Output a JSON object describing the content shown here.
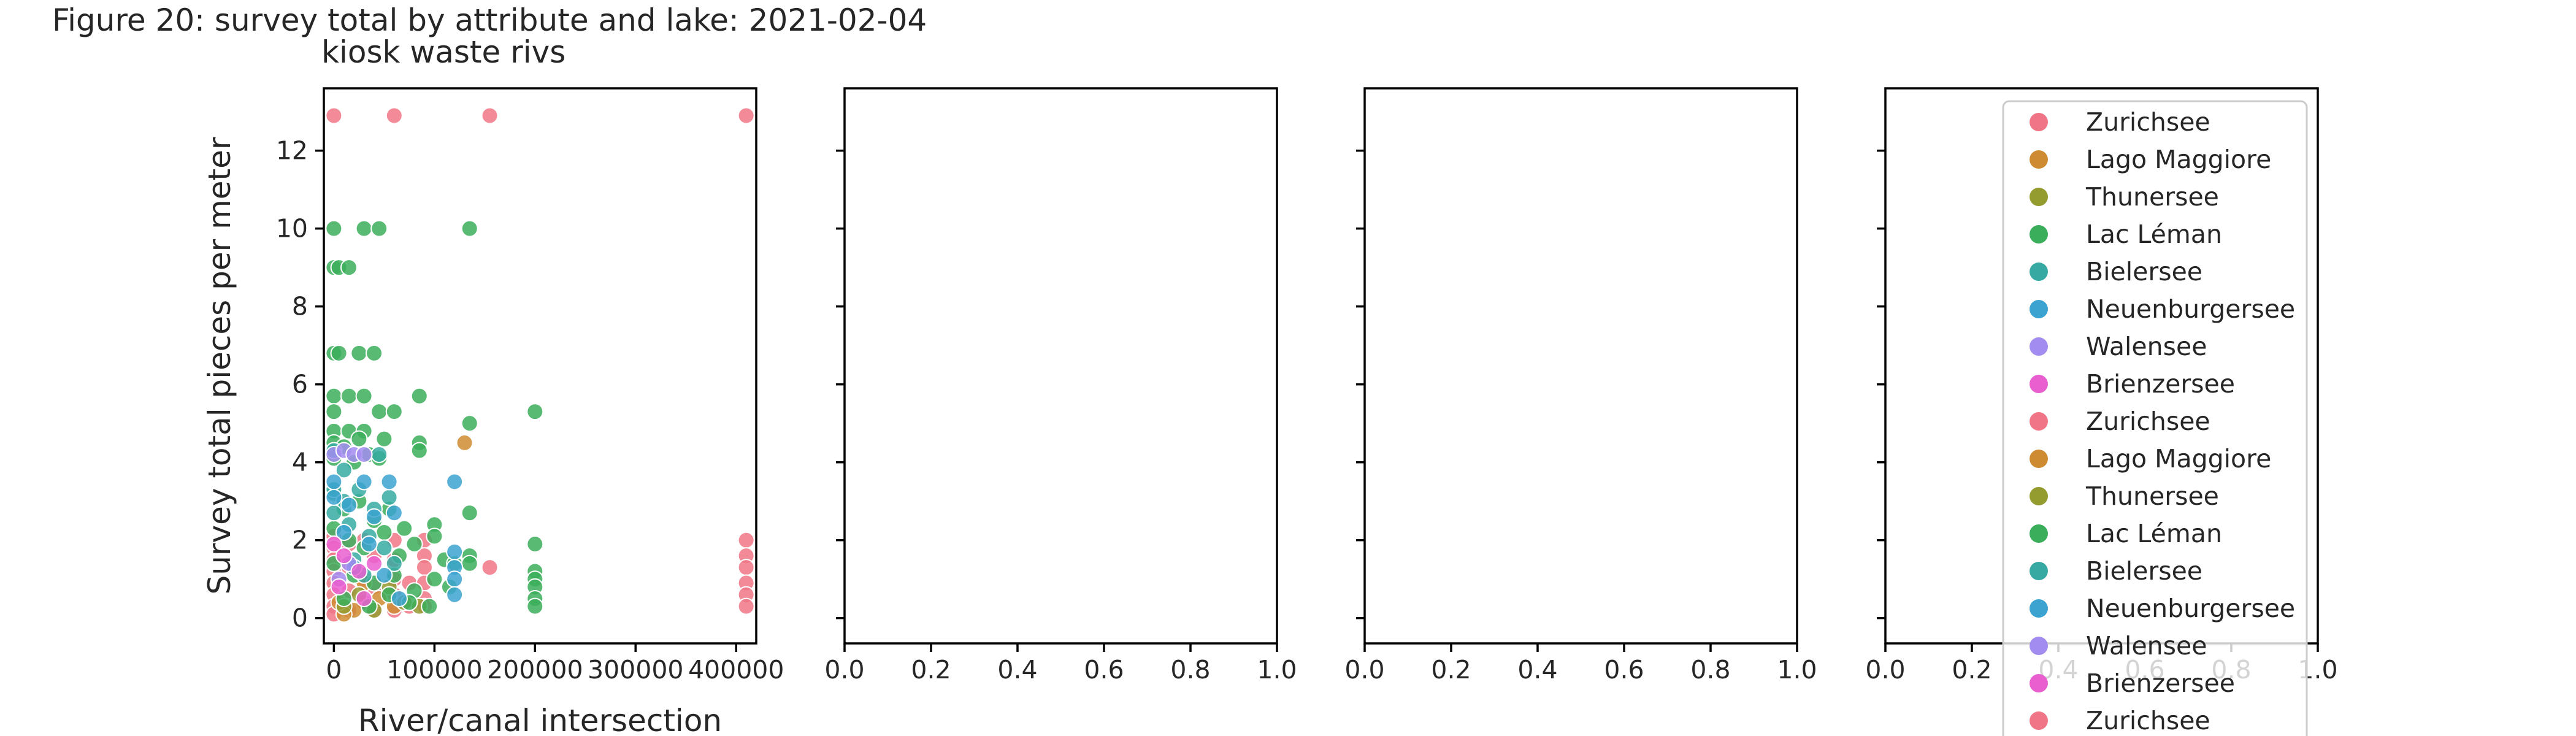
{
  "title": "Figure 20: survey total by attribute and lake: 2021-02-04",
  "subtitle": "kiosk waste rivs",
  "legend_labels": [
    "Zurichsee",
    "Lago Maggiore",
    "Thunersee",
    "Lac Léman",
    "Bielersee",
    "Neuenburgersee",
    "Walensee",
    "Brienzersee",
    "Zurichsee",
    "Lago Maggiore",
    "Thunersee",
    "Lac Léman",
    "Bielersee",
    "Neuenburgersee",
    "Walensee",
    "Brienzersee",
    "Zurichsee"
  ],
  "legend_colors": [
    "#f07586",
    "#cf8b31",
    "#949c30",
    "#3bae5b",
    "#36aaa2",
    "#3ca3d0",
    "#a38cf0",
    "#ea5fd0",
    "#f07586",
    "#cf8b31",
    "#949c30",
    "#3bae5b",
    "#36aaa2",
    "#3ca3d0",
    "#a38cf0",
    "#ea5fd0",
    "#f07586"
  ],
  "lake_colors": {
    "Zurichsee": "#f07586",
    "Lago Maggiore": "#cf8b31",
    "Thunersee": "#949c30",
    "Lac Léman": "#3bae5b",
    "Bielersee": "#36aaa2",
    "Neuenburgersee": "#3ca3d0",
    "Walensee": "#a38cf0",
    "Brienzersee": "#ea5fd0"
  },
  "chart_data": [
    {
      "type": "scatter",
      "xlabel": "River/canal intersection",
      "ylabel": "Survey total pieces per meter",
      "xlim": [
        -10000,
        420000
      ],
      "ylim": [
        -0.65,
        13.6
      ],
      "xticks": [
        0,
        100000,
        200000,
        300000,
        400000
      ],
      "xtick_labels": [
        "0",
        "100000",
        "200000",
        "300000",
        "400000"
      ],
      "yticks": [
        0,
        2,
        4,
        6,
        8,
        10,
        12
      ],
      "ytick_labels": [
        "0",
        "2",
        "4",
        "6",
        "8",
        "10",
        "12"
      ],
      "series": [
        {
          "name": "Zurichsee",
          "points": [
            [
              0,
              12.9
            ],
            [
              60000,
              12.9
            ],
            [
              155000,
              12.9
            ],
            [
              410000,
              12.9
            ],
            [
              0,
              2.1
            ],
            [
              0,
              1.8
            ],
            [
              0,
              1.5
            ],
            [
              0,
              1.2
            ],
            [
              0,
              0.9
            ],
            [
              0,
              0.6
            ],
            [
              0,
              0.3
            ],
            [
              0,
              0.1
            ],
            [
              15000,
              1.9
            ],
            [
              15000,
              1.3
            ],
            [
              15000,
              0.7
            ],
            [
              15000,
              0.2
            ],
            [
              30000,
              2.0
            ],
            [
              30000,
              1.0
            ],
            [
              30000,
              0.4
            ],
            [
              40000,
              1.6
            ],
            [
              40000,
              0.8
            ],
            [
              40000,
              0.2
            ],
            [
              60000,
              2.0
            ],
            [
              60000,
              1.5
            ],
            [
              60000,
              1.0
            ],
            [
              60000,
              0.6
            ],
            [
              60000,
              0.2
            ],
            [
              75000,
              0.9
            ],
            [
              75000,
              0.3
            ],
            [
              90000,
              2.0
            ],
            [
              90000,
              1.6
            ],
            [
              90000,
              1.3
            ],
            [
              90000,
              0.9
            ],
            [
              90000,
              0.5
            ],
            [
              90000,
              0.3
            ],
            [
              155000,
              1.3
            ],
            [
              410000,
              2.0
            ],
            [
              410000,
              1.6
            ],
            [
              410000,
              1.3
            ],
            [
              410000,
              0.9
            ],
            [
              410000,
              0.6
            ],
            [
              410000,
              0.3
            ]
          ]
        },
        {
          "name": "Lago Maggiore",
          "points": [
            [
              130000,
              4.5
            ],
            [
              30000,
              0.9
            ],
            [
              20000,
              0.2
            ],
            [
              10000,
              0.1
            ],
            [
              45000,
              0.5
            ],
            [
              60000,
              0.3
            ],
            [
              5000,
              0.4
            ]
          ]
        },
        {
          "name": "Thunersee",
          "points": [
            [
              10000,
              0.3
            ],
            [
              25000,
              0.6
            ],
            [
              40000,
              0.2
            ],
            [
              55000,
              0.8
            ],
            [
              70000,
              0.4
            ],
            [
              85000,
              0.3
            ]
          ]
        },
        {
          "name": "Lac Léman",
          "points": [
            [
              0,
              10.0
            ],
            [
              30000,
              10.0
            ],
            [
              45000,
              10.0
            ],
            [
              135000,
              10.0
            ],
            [
              0,
              9.0
            ],
            [
              5000,
              9.0
            ],
            [
              15000,
              9.0
            ],
            [
              0,
              6.8
            ],
            [
              5000,
              6.8
            ],
            [
              25000,
              6.8
            ],
            [
              40000,
              6.8
            ],
            [
              0,
              5.7
            ],
            [
              15000,
              5.7
            ],
            [
              30000,
              5.7
            ],
            [
              85000,
              5.7
            ],
            [
              0,
              5.3
            ],
            [
              45000,
              5.3
            ],
            [
              60000,
              5.3
            ],
            [
              200000,
              5.3
            ],
            [
              0,
              4.8
            ],
            [
              15000,
              4.8
            ],
            [
              30000,
              4.8
            ],
            [
              135000,
              5.0
            ],
            [
              0,
              4.5
            ],
            [
              10000,
              4.4
            ],
            [
              25000,
              4.6
            ],
            [
              35000,
              4.2
            ],
            [
              50000,
              4.6
            ],
            [
              85000,
              4.5
            ],
            [
              85000,
              4.3
            ],
            [
              0,
              4.1
            ],
            [
              20000,
              4.0
            ],
            [
              45000,
              4.1
            ],
            [
              0,
              3.2
            ],
            [
              10000,
              2.8
            ],
            [
              25000,
              3.0
            ],
            [
              40000,
              2.5
            ],
            [
              55000,
              2.8
            ],
            [
              70000,
              2.3
            ],
            [
              100000,
              2.4
            ],
            [
              100000,
              2.1
            ],
            [
              135000,
              2.7
            ],
            [
              0,
              2.3
            ],
            [
              15000,
              2.0
            ],
            [
              30000,
              1.8
            ],
            [
              50000,
              2.2
            ],
            [
              65000,
              1.6
            ],
            [
              80000,
              1.9
            ],
            [
              110000,
              1.5
            ],
            [
              120000,
              1.4
            ],
            [
              135000,
              1.6
            ],
            [
              135000,
              1.4
            ],
            [
              200000,
              1.9
            ],
            [
              0,
              1.4
            ],
            [
              20000,
              1.1
            ],
            [
              40000,
              0.9
            ],
            [
              60000,
              1.1
            ],
            [
              80000,
              0.7
            ],
            [
              100000,
              1.0
            ],
            [
              115000,
              0.8
            ],
            [
              200000,
              1.2
            ],
            [
              200000,
              1.0
            ],
            [
              200000,
              0.8
            ],
            [
              200000,
              0.5
            ],
            [
              200000,
              0.3
            ],
            [
              10000,
              0.5
            ],
            [
              35000,
              0.3
            ],
            [
              55000,
              0.6
            ],
            [
              75000,
              0.4
            ],
            [
              95000,
              0.3
            ]
          ]
        },
        {
          "name": "Bielersee",
          "points": [
            [
              0,
              3.3
            ],
            [
              10000,
              3.0
            ],
            [
              25000,
              3.3
            ],
            [
              40000,
              2.8
            ],
            [
              55000,
              3.1
            ],
            [
              15000,
              2.4
            ],
            [
              35000,
              2.1
            ],
            [
              0,
              2.7
            ],
            [
              50000,
              1.8
            ],
            [
              20000,
              1.5
            ],
            [
              60000,
              1.4
            ],
            [
              30000,
              1.1
            ],
            [
              45000,
              4.2
            ],
            [
              0,
              4.3
            ],
            [
              10000,
              3.8
            ]
          ]
        },
        {
          "name": "Neuenburgersee",
          "points": [
            [
              0,
              3.5
            ],
            [
              30000,
              3.5
            ],
            [
              55000,
              3.5
            ],
            [
              120000,
              3.5
            ],
            [
              0,
              3.1
            ],
            [
              15000,
              2.9
            ],
            [
              40000,
              2.6
            ],
            [
              60000,
              2.7
            ],
            [
              10000,
              2.2
            ],
            [
              35000,
              1.9
            ],
            [
              120000,
              1.7
            ],
            [
              120000,
              1.3
            ],
            [
              120000,
              1.0
            ],
            [
              120000,
              0.6
            ],
            [
              20000,
              1.3
            ],
            [
              50000,
              1.1
            ],
            [
              65000,
              0.5
            ]
          ]
        },
        {
          "name": "Walensee",
          "points": [
            [
              0,
              4.2
            ],
            [
              10000,
              4.3
            ],
            [
              20000,
              4.2
            ],
            [
              30000,
              4.2
            ],
            [
              15000,
              1.4
            ],
            [
              5000,
              1.0
            ]
          ]
        },
        {
          "name": "Brienzersee",
          "points": [
            [
              0,
              1.9
            ],
            [
              10000,
              1.6
            ],
            [
              25000,
              1.2
            ],
            [
              40000,
              1.4
            ],
            [
              5000,
              0.8
            ],
            [
              30000,
              0.5
            ]
          ]
        }
      ]
    },
    {
      "type": "scatter",
      "xlim": [
        0.0,
        1.0
      ],
      "xticks": [
        0.0,
        0.2,
        0.4,
        0.6,
        0.8,
        1.0
      ],
      "xtick_labels": [
        "0.0",
        "0.2",
        "0.4",
        "0.6",
        "0.8",
        "1.0"
      ],
      "series": []
    },
    {
      "type": "scatter",
      "xlim": [
        0.0,
        1.0
      ],
      "xticks": [
        0.0,
        0.2,
        0.4,
        0.6,
        0.8,
        1.0
      ],
      "xtick_labels": [
        "0.0",
        "0.2",
        "0.4",
        "0.6",
        "0.8",
        "1.0"
      ],
      "series": []
    },
    {
      "type": "scatter",
      "xlim": [
        0.0,
        1.0
      ],
      "xticks": [
        0.0,
        0.2,
        0.4,
        0.6,
        0.8,
        1.0
      ],
      "xtick_labels": [
        "0.0",
        "0.2",
        "0.4",
        "0.6",
        "0.8",
        "1.0"
      ],
      "series": []
    }
  ]
}
